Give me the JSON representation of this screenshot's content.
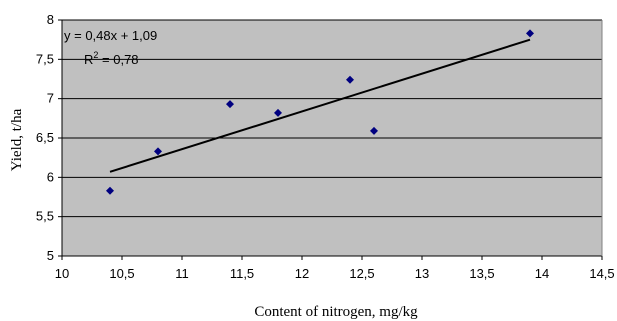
{
  "chart_data": {
    "type": "scatter",
    "title": "",
    "xlabel": "Content of nitrogen, mg/kg",
    "ylabel": "Yield, t/ha",
    "xlim": [
      10,
      14.5
    ],
    "ylim": [
      5,
      8
    ],
    "x_ticks": [
      "10",
      "10,5",
      "11",
      "11,5",
      "12",
      "12,5",
      "13",
      "13,5",
      "14",
      "14,5"
    ],
    "y_ticks": [
      "5",
      "5,5",
      "6",
      "6,5",
      "7",
      "7,5",
      "8"
    ],
    "grid": "horizontal",
    "points": [
      {
        "x": 10.4,
        "y": 5.83
      },
      {
        "x": 10.8,
        "y": 6.33
      },
      {
        "x": 11.4,
        "y": 6.93
      },
      {
        "x": 11.8,
        "y": 6.82
      },
      {
        "x": 12.4,
        "y": 7.24
      },
      {
        "x": 12.6,
        "y": 6.59
      },
      {
        "x": 13.9,
        "y": 7.83
      }
    ],
    "trendline": {
      "type": "linear",
      "x_range": [
        10.4,
        13.9
      ],
      "y_range": [
        6.07,
        7.75
      ]
    },
    "equation_text": "y = 0,48x + 1,09",
    "r2_label": "R",
    "r2_superscript": "2",
    "r2_value": " = 0,78",
    "colors": {
      "plot_background": "#c0c0c0",
      "marker": "#000080",
      "trendline": "#000000",
      "grid": "#000000"
    }
  }
}
